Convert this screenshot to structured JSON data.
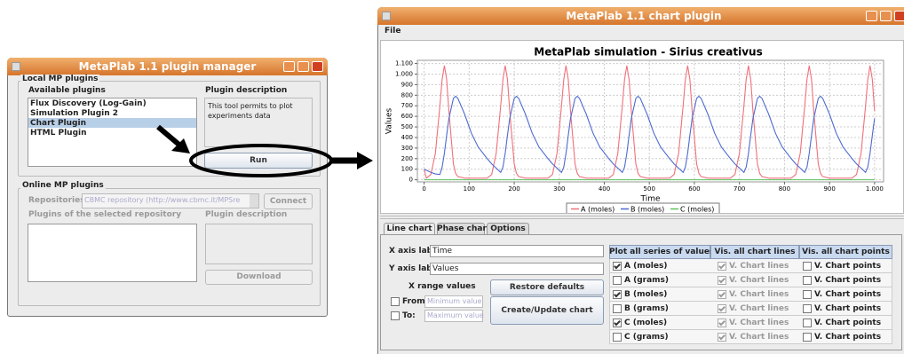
{
  "plugin_manager": {
    "title": "MetaPlab 1.1 plugin manager",
    "local_group": "Local MP plugins",
    "available_label": "Available plugins",
    "plugins": [
      "Flux Discovery (Log-Gain)",
      "Simulation Plugin 2",
      "Chart Plugin",
      "HTML Plugin"
    ],
    "selected": 2,
    "description_label": "Plugin description",
    "description": "This tool permits to plot experiments data",
    "run": "Run",
    "online_group": "Online MP plugins",
    "repositories_label": "Repositories",
    "repository": "CBMC repository (http://www.cbmc.it/MPSre",
    "connect": "Connect",
    "repo_plugins_label": "Plugins of the selected repository",
    "repo_description_label": "Plugin description",
    "download": "Download"
  },
  "chart_plugin": {
    "title": "MetaPlab 1.1 chart plugin",
    "menu": [
      "File"
    ],
    "tabs": [
      "Line chart",
      "Phase chart",
      "Options"
    ],
    "x_axis_label": "X axis label:",
    "x_axis_value": "Time",
    "y_axis_label": "Y axis label:",
    "y_axis_value": "Values",
    "x_range": "X range values",
    "restore": "Restore defaults",
    "from": "From:",
    "from_placeholder": "Minimum value",
    "to": "To:",
    "to_placeholder": "Maximum value",
    "create": "Create/Update chart",
    "table": {
      "headers": [
        "Plot all series of values",
        "Vis. all chart lines",
        "Vis. all chart points"
      ],
      "rows": [
        {
          "name": "A (moles)",
          "plot": true,
          "lines": "V. Chart lines",
          "lines_checked": true,
          "points": "V. Chart points",
          "points_checked": false
        },
        {
          "name": "A (grams)",
          "plot": false,
          "lines": "V. Chart lines",
          "lines_checked": true,
          "points": "V. Chart points",
          "points_checked": false
        },
        {
          "name": "B (moles)",
          "plot": true,
          "lines": "V. Chart lines",
          "lines_checked": true,
          "points": "V. Chart points",
          "points_checked": false
        },
        {
          "name": "B (grams)",
          "plot": false,
          "lines": "V. Chart lines",
          "lines_checked": true,
          "points": "V. Chart points",
          "points_checked": false
        },
        {
          "name": "C (moles)",
          "plot": true,
          "lines": "V. Chart lines",
          "lines_checked": true,
          "points": "V. Chart points",
          "points_checked": false
        },
        {
          "name": "C (grams)",
          "plot": false,
          "lines": "V. Chart lines",
          "lines_checked": true,
          "points": "V. Chart points",
          "points_checked": false
        }
      ]
    }
  },
  "chart_data": {
    "type": "line",
    "title": "MetaPlab simulation - Sirius creativus",
    "x_label": "Time",
    "y_label": "Values",
    "xlim": [
      -15,
      1020
    ],
    "ylim": [
      -20,
      1130
    ],
    "grid": true,
    "xticks": [
      0,
      100,
      200,
      300,
      400,
      500,
      600,
      700,
      800,
      900,
      {
        "value": 1000,
        "label": "1.000"
      }
    ],
    "yticks": [
      0,
      100,
      200,
      300,
      400,
      500,
      600,
      700,
      800,
      900,
      {
        "value": 1000,
        "label": "1.000"
      },
      {
        "value": 1100,
        "label": "1.100"
      }
    ],
    "x": [
      0,
      5,
      15,
      25,
      35,
      40,
      45,
      50,
      55,
      65,
      70,
      75,
      90,
      105,
      120,
      140,
      150,
      160,
      170,
      175,
      180,
      185,
      190,
      200,
      205,
      210,
      225,
      240,
      255,
      275,
      285,
      295,
      305,
      310,
      315,
      320,
      325,
      335,
      340,
      345,
      360,
      375,
      390,
      410,
      420,
      430,
      440,
      445,
      450,
      455,
      460,
      470,
      475,
      480,
      495,
      510,
      525,
      545,
      555,
      565,
      575,
      580,
      585,
      590,
      595,
      605,
      610,
      615,
      630,
      645,
      660,
      680,
      690,
      700,
      710,
      715,
      720,
      725,
      730,
      740,
      745,
      750,
      765,
      780,
      795,
      815,
      825,
      835,
      845,
      850,
      855,
      860,
      865,
      875,
      880,
      885,
      900,
      915,
      930,
      950,
      960,
      970,
      980,
      985,
      990,
      995,
      1000
    ],
    "series": [
      {
        "name": "A (moles)",
        "color": "#f0707a",
        "values": [
          100,
          15,
          50,
          250,
          700,
          950,
          1080,
          950,
          650,
          150,
          60,
          30,
          15,
          15,
          15,
          15,
          50,
          250,
          700,
          950,
          1080,
          950,
          650,
          150,
          60,
          30,
          15,
          15,
          15,
          15,
          50,
          250,
          700,
          950,
          1080,
          950,
          650,
          150,
          60,
          30,
          15,
          15,
          15,
          15,
          50,
          250,
          700,
          950,
          1080,
          950,
          650,
          150,
          60,
          30,
          15,
          15,
          15,
          15,
          50,
          250,
          700,
          950,
          1080,
          950,
          650,
          150,
          60,
          30,
          15,
          15,
          15,
          15,
          50,
          250,
          700,
          950,
          1080,
          950,
          650,
          150,
          60,
          30,
          15,
          15,
          15,
          15,
          50,
          250,
          700,
          950,
          1080,
          950,
          650,
          150,
          60,
          30,
          15,
          15,
          15,
          15,
          50,
          250,
          700,
          950,
          1080,
          950,
          650
        ]
      },
      {
        "name": "B (moles)",
        "color": "#4d6ad0",
        "values": [
          100,
          90,
          70,
          55,
          50,
          120,
          250,
          420,
          580,
          770,
          790,
          770,
          620,
          440,
          310,
          200,
          150,
          110,
          70,
          120,
          250,
          420,
          580,
          770,
          790,
          770,
          620,
          440,
          310,
          200,
          150,
          110,
          70,
          120,
          250,
          420,
          580,
          770,
          790,
          770,
          620,
          440,
          310,
          200,
          150,
          110,
          70,
          120,
          250,
          420,
          580,
          770,
          790,
          770,
          620,
          440,
          310,
          200,
          150,
          110,
          70,
          120,
          250,
          420,
          580,
          770,
          790,
          770,
          620,
          440,
          310,
          200,
          150,
          110,
          70,
          120,
          250,
          420,
          580,
          770,
          790,
          770,
          620,
          440,
          310,
          200,
          150,
          110,
          70,
          120,
          250,
          420,
          580,
          770,
          790,
          770,
          620,
          440,
          310,
          200,
          150,
          110,
          70,
          120,
          250,
          420,
          580
        ]
      },
      {
        "name": "C (moles)",
        "color": "#5cc25c",
        "values": [
          0,
          0,
          0,
          0,
          0,
          0,
          0,
          0,
          0,
          0,
          0,
          0,
          0,
          0,
          0,
          0,
          0,
          0,
          0,
          0,
          0,
          0,
          0,
          0,
          0,
          0,
          0,
          0,
          0,
          0,
          0,
          0,
          0,
          0,
          0,
          0,
          0,
          0,
          0,
          0,
          0,
          0,
          0,
          0,
          0,
          0,
          0,
          0,
          0,
          0,
          0,
          0,
          0,
          0,
          0,
          0,
          0,
          0,
          0,
          0,
          0,
          0,
          0,
          0,
          0,
          0,
          0,
          0,
          0,
          0,
          0,
          0,
          0,
          0,
          0,
          0,
          0,
          0,
          0,
          0,
          0,
          0,
          0,
          0,
          0,
          0,
          0,
          0,
          0,
          0,
          0,
          0,
          0,
          0,
          0,
          0,
          0,
          0,
          0,
          0,
          0,
          0,
          0,
          0,
          0,
          0,
          0
        ]
      }
    ]
  }
}
